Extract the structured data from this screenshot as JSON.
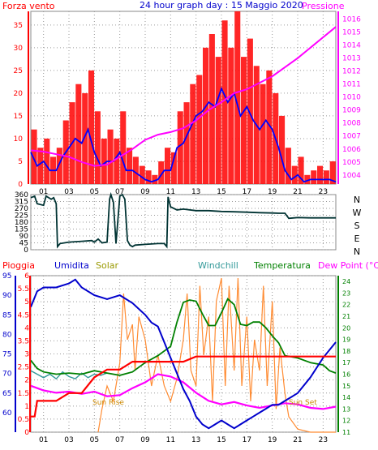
{
  "colors": {
    "wind": "#ff0000",
    "wind_gust": "#ff0000",
    "wind_avg": "#0000ff",
    "pressure": "#ff00ff",
    "direction": "#003333",
    "rain": "#ff0000",
    "humidity": "#0000cc",
    "solar": "#ff8c33",
    "windchill": "#339999",
    "temperature": "#008000",
    "dewpoint": "#ff00ff",
    "title": "#0000cc",
    "axis_left": "#ff0000",
    "axis_right": "#ff00ff",
    "axis_humidity": "#0000cc",
    "axis_temp": "#008000",
    "sun": "#cc8800"
  },
  "header": {
    "left_label": "Forza vento",
    "title": "24 hour graph day : 15 Maggio 2020",
    "right_label": "Pressione"
  },
  "direction_labels": [
    "N",
    "W",
    "S",
    "E",
    "N"
  ],
  "bottom_header": {
    "rain": "Pioggia",
    "humidity": "Umidita",
    "solar": "Solar",
    "windchill": "Windchill",
    "temperature": "Temperatura",
    "dewpoint": "Dew Point (°C)"
  },
  "sun_markers": {
    "rise": "Sun Rise",
    "set": "Sun Set"
  },
  "chart_data": [
    {
      "type": "line",
      "x_ticks": [
        "01",
        "03",
        "05",
        "07",
        "09",
        "11",
        "13",
        "15",
        "17",
        "19",
        "21",
        "23"
      ],
      "xlim": [
        0,
        24
      ],
      "ylim": [
        0,
        38
      ],
      "y_ticks": [
        0,
        5,
        10,
        15,
        20,
        25,
        30,
        35
      ],
      "y2lim": [
        1003.3,
        1016.6
      ],
      "y2_ticks": [
        1004,
        1005,
        1006,
        1007,
        1008,
        1009,
        1010,
        1011,
        1012,
        1013,
        1014,
        1015,
        1016
      ],
      "grid": true,
      "series": [
        {
          "name": "Forza vento",
          "style": "bar",
          "x": [
            0,
            0.5,
            1,
            1.5,
            2,
            2.5,
            3,
            3.5,
            4,
            4.5,
            5,
            5.5,
            6,
            6.5,
            7,
            7.5,
            8,
            8.5,
            9,
            9.5,
            10,
            10.5,
            11,
            11.5,
            12,
            12.5,
            13,
            13.5,
            14,
            14.5,
            15,
            15.5,
            16,
            16.5,
            17,
            17.5,
            18,
            18.5,
            19,
            19.5,
            20,
            20.5,
            21,
            21.5,
            22,
            22.5,
            23,
            23.5
          ],
          "values": [
            12,
            8,
            10,
            6,
            8,
            14,
            18,
            22,
            20,
            25,
            16,
            10,
            12,
            10,
            16,
            8,
            6,
            4,
            3,
            2,
            5,
            8,
            7,
            16,
            18,
            22,
            24,
            30,
            33,
            28,
            36,
            30,
            38,
            28,
            32,
            26,
            22,
            25,
            20,
            15,
            8,
            4,
            6,
            2,
            3,
            4,
            3,
            5
          ]
        },
        {
          "name": "Media",
          "style": "line",
          "x": [
            0,
            0.5,
            1,
            1.5,
            2,
            2.5,
            3,
            3.5,
            4,
            4.5,
            5,
            5.5,
            6,
            6.5,
            7,
            7.5,
            8,
            8.5,
            9,
            9.5,
            10,
            10.5,
            11,
            11.5,
            12,
            12.5,
            13,
            13.5,
            14,
            14.5,
            15,
            15.5,
            16,
            16.5,
            17,
            17.5,
            18,
            18.5,
            19,
            19.5,
            20,
            20.5,
            21,
            21.5,
            22,
            22.5,
            23,
            23.5,
            24
          ],
          "values": [
            7,
            4,
            5,
            3,
            3,
            6,
            8,
            10,
            9,
            12,
            7,
            4,
            5,
            5,
            7,
            3,
            3,
            2,
            1,
            0.5,
            1,
            3,
            3,
            8,
            9,
            12,
            15,
            16,
            18,
            17,
            21,
            18,
            20,
            15,
            17,
            14,
            12,
            14,
            12,
            8,
            3,
            1,
            2,
            0.5,
            1,
            1,
            1,
            1,
            0.5
          ]
        },
        {
          "name": "Pressione",
          "style": "line",
          "axis": "right",
          "x": [
            0,
            1,
            2,
            3,
            4,
            5,
            6,
            7,
            8,
            9,
            10,
            11,
            12,
            13,
            14,
            15,
            16,
            17,
            18,
            19,
            20,
            21,
            22,
            23,
            24
          ],
          "values": [
            1005.9,
            1005.8,
            1005.6,
            1005.4,
            1005.0,
            1004.7,
            1004.8,
            1005.4,
            1006.0,
            1006.7,
            1007.1,
            1007.3,
            1007.6,
            1008.2,
            1009.0,
            1009.6,
            1010.3,
            1010.6,
            1011.1,
            1011.6,
            1012.3,
            1013.0,
            1013.8,
            1014.6,
            1015.4
          ]
        }
      ]
    },
    {
      "type": "line",
      "xlim": [
        0,
        24
      ],
      "ylim": [
        0,
        360
      ],
      "y_ticks": [
        0,
        45,
        90,
        135,
        180,
        225,
        270,
        315,
        360
      ],
      "grid": true,
      "series": [
        {
          "name": "Direzione",
          "x": [
            0,
            0.3,
            0.5,
            1.0,
            1.2,
            1.6,
            1.8,
            2.0,
            2.1,
            2.3,
            3.0,
            4.0,
            4.8,
            5.0,
            5.3,
            5.6,
            6.0,
            6.2,
            6.3,
            6.5,
            6.7,
            7.0,
            7.2,
            7.4,
            7.6,
            7.8,
            8.0,
            8.2,
            9.0,
            10.0,
            10.5,
            10.7,
            10.8,
            11.0,
            11.5,
            12.0,
            13.0,
            14.0,
            15.0,
            16.0,
            17.0,
            18.0,
            19.0,
            19.5,
            20.0,
            20.3,
            21.0,
            22.0,
            23.0,
            24.0
          ],
          "values": [
            340,
            350,
            300,
            290,
            350,
            330,
            340,
            300,
            20,
            40,
            50,
            55,
            60,
            50,
            70,
            45,
            50,
            330,
            360,
            310,
            40,
            350,
            360,
            330,
            60,
            30,
            20,
            30,
            35,
            40,
            40,
            20,
            345,
            280,
            260,
            265,
            255,
            255,
            250,
            248,
            245,
            242,
            240,
            238,
            238,
            205,
            210,
            208,
            208,
            208
          ]
        }
      ]
    },
    {
      "type": "line",
      "x_ticks": [
        "01",
        "03",
        "05",
        "07",
        "09",
        "11",
        "13",
        "15",
        "17",
        "19",
        "21",
        "23"
      ],
      "xlim": [
        0,
        24
      ],
      "ylim": [
        55,
        95
      ],
      "y_ticks": [
        60,
        65,
        70,
        75,
        80,
        85,
        90,
        95
      ],
      "rain_lim": [
        0,
        6
      ],
      "rain_ticks": [
        0,
        0.5,
        1,
        1.5,
        2,
        2.5,
        3,
        3.5,
        4,
        4.5,
        5,
        5.5,
        6
      ],
      "temp_lim": [
        11,
        24.5
      ],
      "temp_ticks": [
        11,
        12,
        13,
        14,
        15,
        16,
        17,
        18,
        19,
        20,
        21,
        22,
        23,
        24
      ],
      "grid": true,
      "series": [
        {
          "name": "Pioggia",
          "axis": "rain",
          "x": [
            0,
            0.3,
            0.5,
            1,
            2,
            3,
            4,
            5,
            6,
            7,
            8,
            9,
            10,
            11,
            12,
            13,
            14,
            15,
            16,
            17,
            18,
            19,
            20,
            21,
            22,
            23,
            24
          ],
          "values": [
            0.6,
            0.6,
            1.2,
            1.2,
            1.2,
            1.5,
            1.5,
            2.1,
            2.4,
            2.4,
            2.7,
            2.7,
            2.7,
            2.7,
            2.7,
            2.9,
            2.9,
            2.9,
            2.9,
            2.9,
            2.9,
            2.9,
            2.9,
            2.9,
            2.9,
            2.9,
            2.9
          ]
        },
        {
          "name": "Umidita",
          "x": [
            0,
            0.5,
            1,
            2,
            3,
            3.5,
            4,
            5,
            6,
            7,
            8,
            9,
            9.5,
            10,
            10.5,
            11,
            11.5,
            12,
            12.5,
            13,
            13.5,
            14,
            14.5,
            15,
            15.5,
            16,
            16.5,
            17,
            17.5,
            18,
            18.5,
            19,
            19.5,
            20,
            20.5,
            21,
            22,
            23,
            24
          ],
          "values": [
            87,
            91,
            92,
            92,
            93,
            94,
            92,
            90,
            89,
            90,
            88,
            85,
            83,
            82,
            78,
            74,
            70,
            66,
            63,
            59,
            57,
            56,
            57,
            58,
            57,
            56,
            57,
            58,
            59,
            60,
            61,
            62,
            62,
            63,
            64,
            65,
            69,
            74,
            78
          ]
        },
        {
          "name": "Solar",
          "axis": "solar",
          "x": [
            5.3,
            5.6,
            6,
            6.5,
            7,
            7.3,
            7.6,
            8,
            8.2,
            8.5,
            9,
            9.5,
            10,
            10.5,
            11,
            11.5,
            12,
            12.3,
            12.6,
            13,
            13.3,
            13.6,
            14,
            14.3,
            14.6,
            15,
            15.3,
            15.6,
            16,
            16.3,
            16.6,
            17,
            17.3,
            17.6,
            18,
            18.3,
            18.6,
            19,
            19.3,
            19.6,
            20,
            20.3,
            21,
            22,
            23,
            24
          ],
          "values": [
            0,
            0.15,
            0.3,
            0.2,
            0.45,
            0.9,
            0.6,
            0.7,
            0.4,
            0.75,
            0.6,
            0.3,
            0.5,
            0.3,
            0.2,
            0.35,
            0.6,
            0.9,
            0.4,
            0.3,
            0.95,
            0.5,
            0.75,
            0.2,
            0.85,
            1.0,
            0.3,
            0.95,
            0.4,
            1.0,
            0.3,
            0.75,
            0.2,
            0.6,
            0.4,
            0.95,
            0.3,
            0.85,
            0.15,
            0.55,
            0.25,
            0.1,
            0.02,
            0,
            0,
            0
          ]
        },
        {
          "name": "Windchill",
          "axis": "temp",
          "x": [
            0,
            0.5,
            1,
            1.5,
            2,
            2.5,
            3,
            3.5,
            4,
            4.5,
            5,
            5.5,
            6
          ],
          "values": [
            16.3,
            16.0,
            15.7,
            16.0,
            15.6,
            16.2,
            15.8,
            15.6,
            16.1,
            15.7,
            16.0,
            15.9,
            16.1
          ]
        },
        {
          "name": "Temperatura",
          "axis": "temp",
          "x": [
            0,
            0.5,
            1,
            2,
            3,
            4,
            5,
            6,
            7,
            8,
            9,
            10,
            11,
            11.5,
            12,
            12.5,
            13,
            13.5,
            14,
            14.5,
            15,
            15.5,
            16,
            16.5,
            17,
            17.5,
            18,
            18.5,
            19,
            19.5,
            20,
            21,
            22,
            23,
            23.5,
            24
          ],
          "values": [
            17.2,
            16.5,
            16.2,
            16.0,
            16.1,
            16.0,
            16.3,
            16.1,
            15.9,
            16.2,
            17.0,
            17.6,
            18.4,
            20.5,
            22.2,
            22.4,
            22.3,
            21.2,
            20.2,
            20.2,
            21.3,
            22.5,
            22.0,
            20.3,
            20.2,
            20.5,
            20.5,
            20.0,
            19.3,
            18.7,
            17.6,
            17.4,
            17.0,
            16.8,
            16.3,
            16.1
          ]
        },
        {
          "name": "Dew Point",
          "axis": "temp",
          "x": [
            0,
            1,
            2,
            3,
            4,
            5,
            6,
            7,
            8,
            9,
            10,
            11,
            12,
            13,
            14,
            15,
            16,
            17,
            18,
            19,
            20,
            21,
            22,
            23,
            24
          ],
          "values": [
            15.0,
            14.6,
            14.4,
            14.5,
            14.3,
            14.5,
            14.1,
            14.2,
            14.8,
            15.3,
            16.0,
            15.8,
            15.3,
            14.4,
            13.7,
            13.4,
            13.6,
            13.3,
            13.1,
            13.3,
            13.5,
            13.4,
            13.1,
            13.0,
            13.2
          ]
        }
      ]
    }
  ]
}
